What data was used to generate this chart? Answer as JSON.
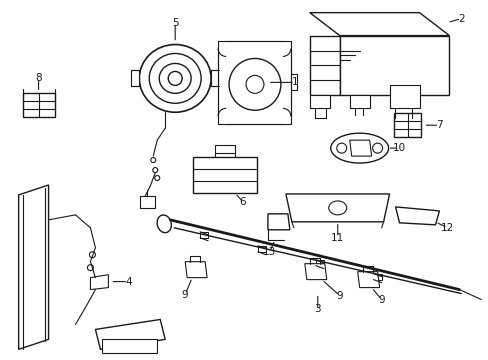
{
  "background_color": "#ffffff",
  "line_color": "#1a1a1a",
  "line_width": 0.8,
  "label_fontsize": 7.5,
  "fig_width": 4.89,
  "fig_height": 3.6,
  "dpi": 100
}
